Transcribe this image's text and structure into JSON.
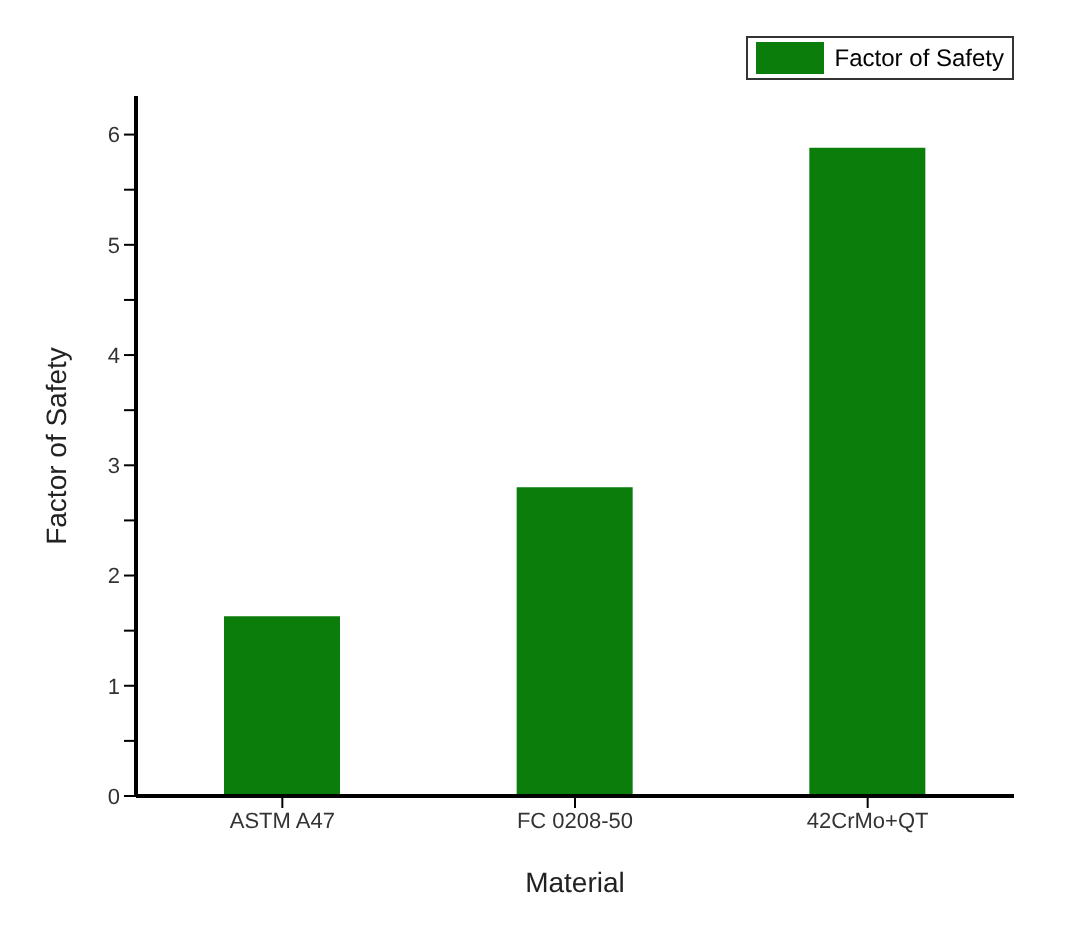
{
  "chart_data": {
    "type": "bar",
    "xlabel": "Material",
    "ylabel": "Factor of Safety",
    "categories": [
      "ASTM A47",
      "FC 0208-50",
      "42CrMo+QT"
    ],
    "series": [
      {
        "name": "Factor of Safety",
        "color": "#0a7d0a",
        "values": [
          1.63,
          2.8,
          5.88
        ]
      }
    ],
    "ylim": [
      0,
      6.35
    ],
    "yticks": [
      0,
      {
        "value": 0.5,
        "label": null
      },
      1,
      {
        "value": 1.5,
        "label": null
      },
      2,
      {
        "value": 2.5,
        "label": null
      },
      3,
      {
        "value": 3.5,
        "label": null
      },
      4,
      {
        "value": 4.5,
        "label": null
      },
      5,
      {
        "value": 5.5,
        "label": null
      },
      6
    ],
    "grid": false,
    "legend": "top right"
  }
}
